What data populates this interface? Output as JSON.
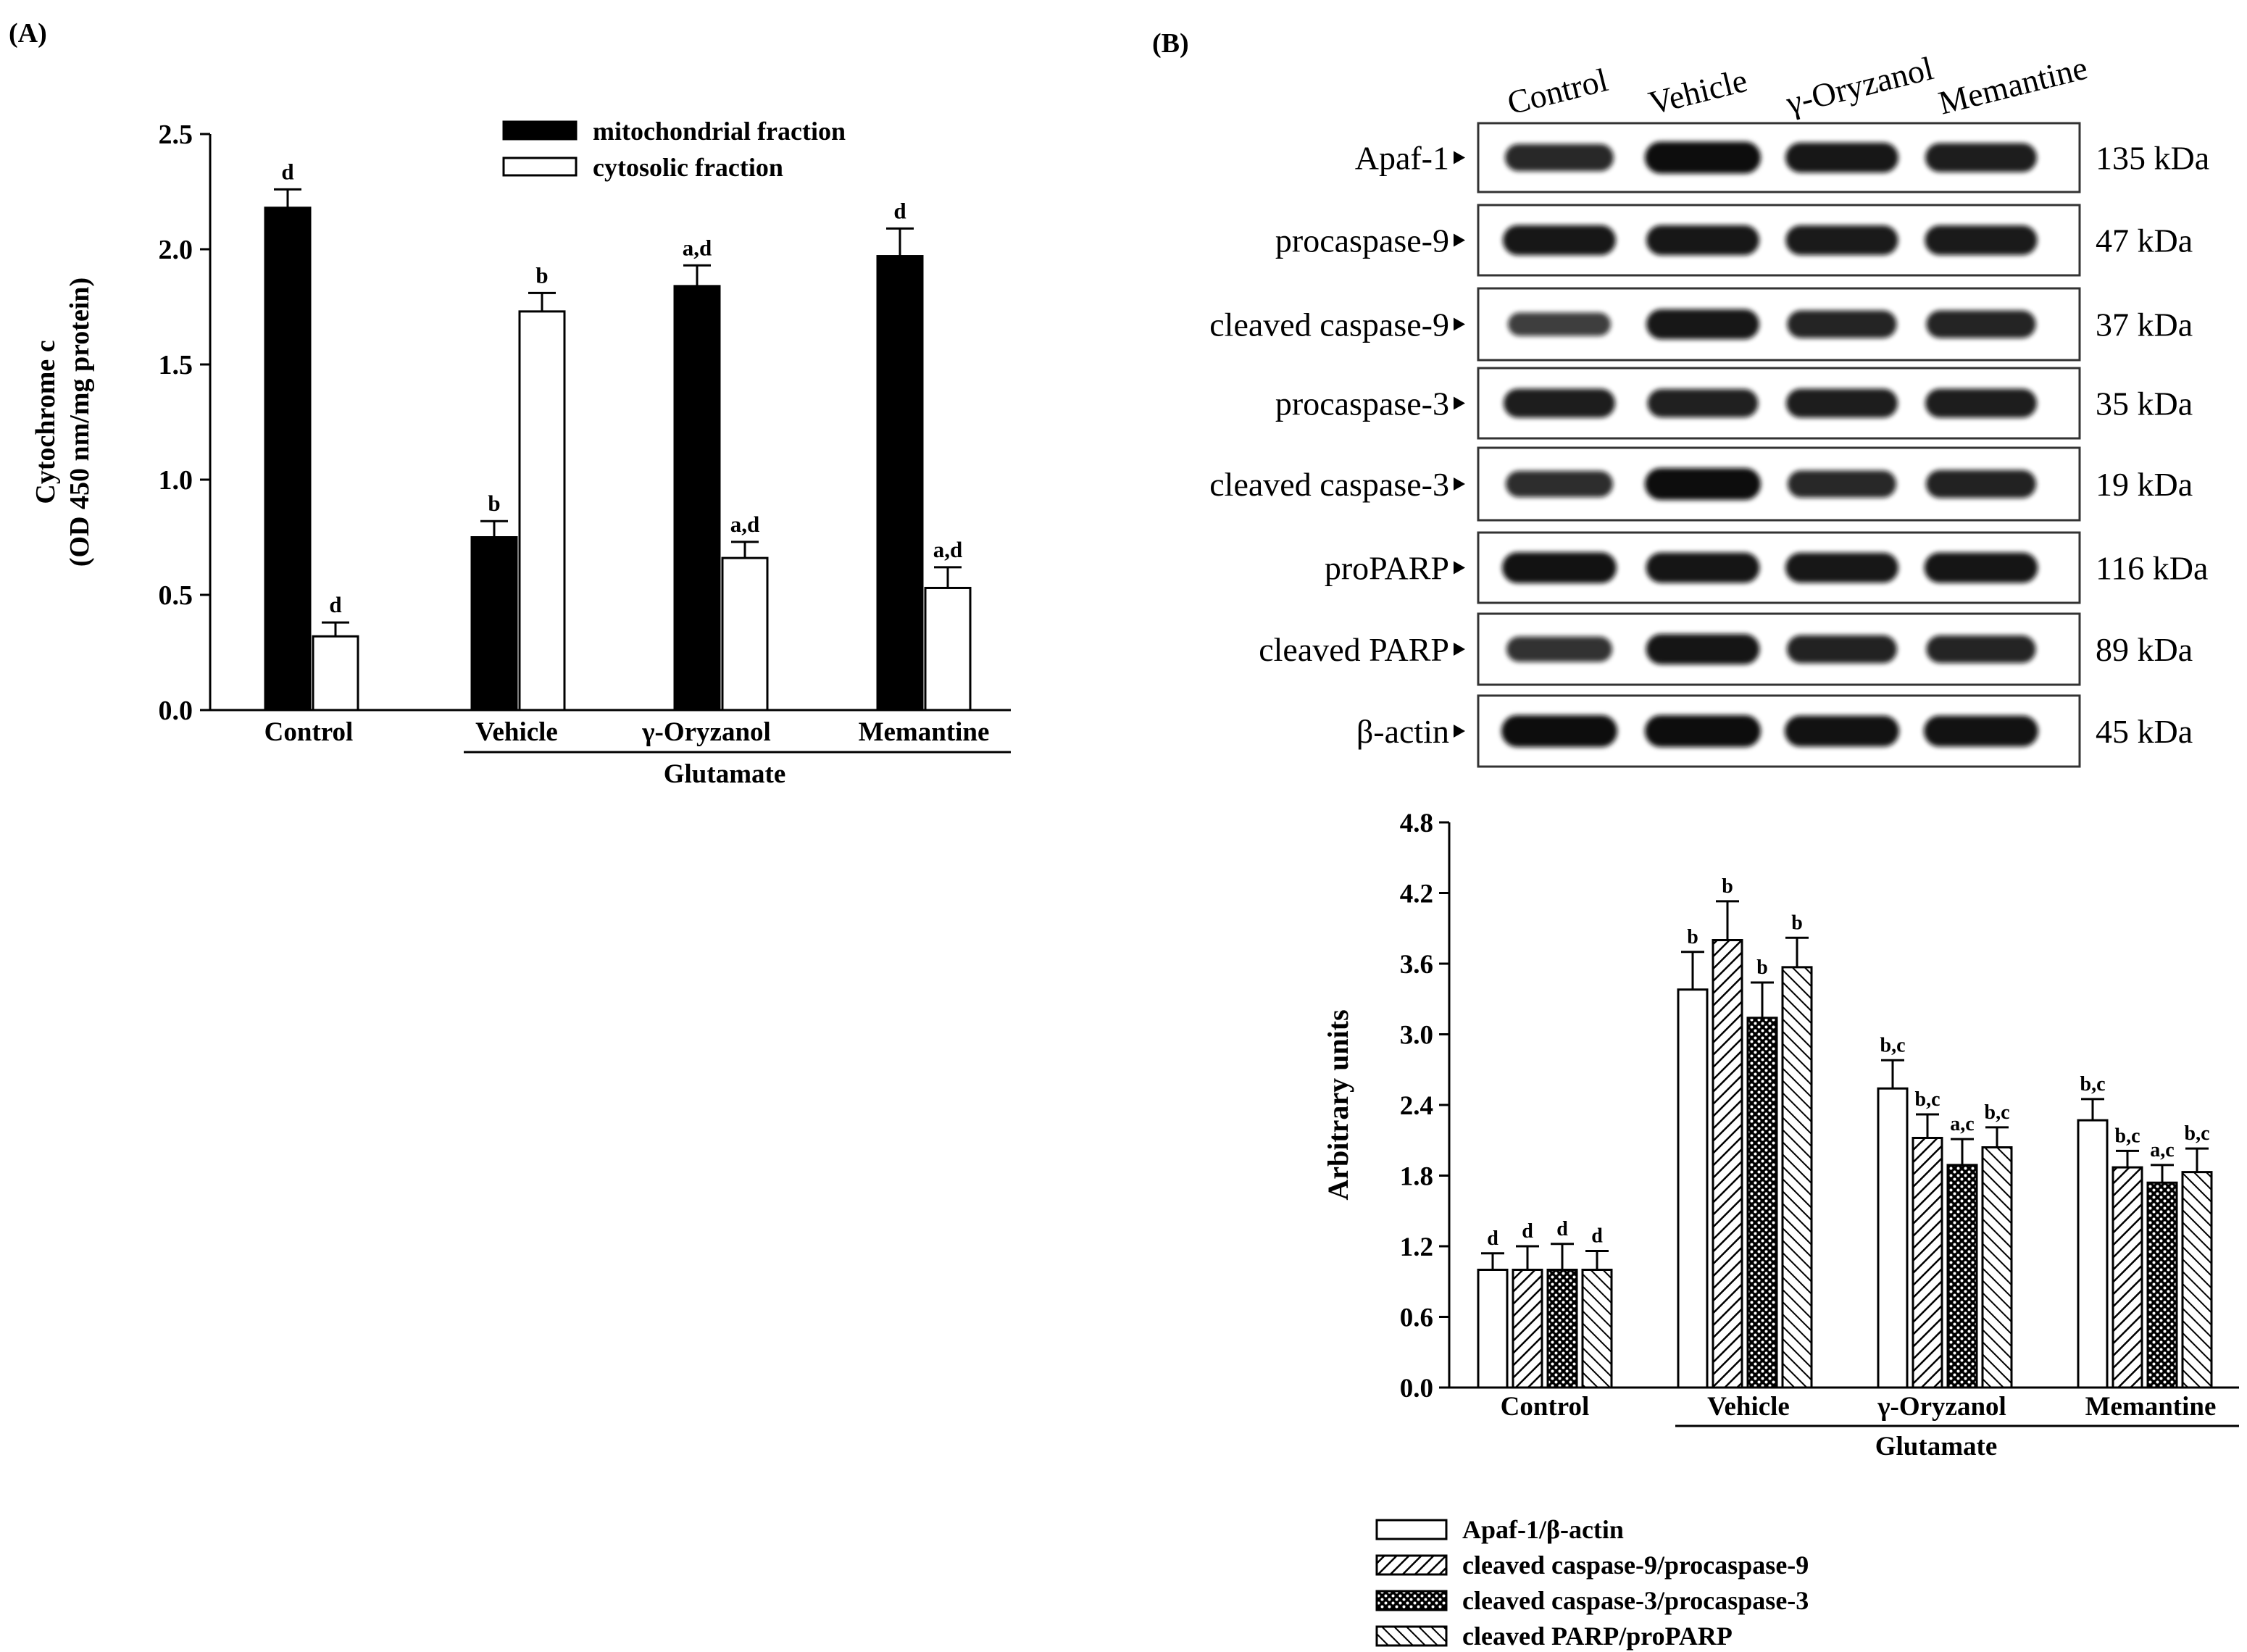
{
  "panel_a_label": "(A)",
  "panel_b_label": "(B)",
  "chart_data": [
    {
      "id": "panel-a",
      "type": "bar",
      "ylabel": "Cytochrome c",
      "ylabel2": "(OD 450 nm/mg protein)",
      "ylim": [
        0,
        2.5
      ],
      "yticks": [
        "0.0",
        "0.5",
        "1.0",
        "1.5",
        "2.0",
        "2.5"
      ],
      "categories": [
        "Control",
        "Vehicle",
        "γ-Oryzanol",
        "Memantine"
      ],
      "group_label": "Glutamate",
      "legend_position": "top-right",
      "series": [
        {
          "name": "mitochondrial fraction",
          "fill": "solid",
          "values": [
            2.18,
            0.75,
            1.84,
            1.97
          ],
          "errors": [
            0.08,
            0.07,
            0.09,
            0.12
          ],
          "labels": [
            "d",
            "b",
            "a,d",
            "d"
          ]
        },
        {
          "name": "cytosolic fraction",
          "fill": "white",
          "values": [
            0.32,
            1.73,
            0.66,
            0.53
          ],
          "errors": [
            0.06,
            0.08,
            0.07,
            0.09
          ],
          "labels": [
            "d",
            "b",
            "a,d",
            "a,d"
          ]
        }
      ]
    },
    {
      "id": "panel-b",
      "type": "bar",
      "ylabel": "Arbitrary units",
      "ylim": [
        0,
        4.8
      ],
      "yticks": [
        "0.0",
        "0.6",
        "1.2",
        "1.8",
        "2.4",
        "3.0",
        "3.6",
        "4.2",
        "4.8"
      ],
      "categories": [
        "Control",
        "Vehicle",
        "γ-Oryzanol",
        "Memantine"
      ],
      "group_label": "Glutamate",
      "legend_position": "bottom",
      "series": [
        {
          "name": "Apaf-1/β-actin",
          "fill": "white",
          "values": [
            1.0,
            3.38,
            2.54,
            2.27
          ],
          "errors": [
            0.14,
            0.32,
            0.24,
            0.18
          ],
          "labels": [
            "d",
            "b",
            "b,c",
            "b,c"
          ]
        },
        {
          "name": "cleaved caspase-9/procaspase-9",
          "fill": "diag",
          "values": [
            1.0,
            3.8,
            2.12,
            1.87
          ],
          "errors": [
            0.2,
            0.33,
            0.2,
            0.14
          ],
          "labels": [
            "d",
            "b",
            "b,c",
            "b,c"
          ]
        },
        {
          "name": "cleaved caspase-3/procaspase-3",
          "fill": "dots",
          "values": [
            1.0,
            3.14,
            1.89,
            1.74
          ],
          "errors": [
            0.22,
            0.3,
            0.22,
            0.15
          ],
          "labels": [
            "d",
            "b",
            "a,c",
            "a,c"
          ]
        },
        {
          "name": "cleaved PARP/proPARP",
          "fill": "hatch",
          "values": [
            1.0,
            3.57,
            2.04,
            1.83
          ],
          "errors": [
            0.16,
            0.25,
            0.17,
            0.2
          ],
          "labels": [
            "d",
            "b",
            "b,c",
            "b,c"
          ]
        }
      ]
    }
  ],
  "blot": {
    "lanes": [
      "Control",
      "Vehicle",
      "γ-Oryzanol",
      "Memantine"
    ],
    "rows": [
      {
        "label": "Apaf-1",
        "kda": "135 kDa",
        "intensity": [
          0.75,
          1.0,
          0.9,
          0.85
        ]
      },
      {
        "label": "procaspase-9",
        "kda": "47 kDa",
        "intensity": [
          0.9,
          0.9,
          0.88,
          0.88
        ]
      },
      {
        "label": "cleaved caspase-9",
        "kda": "37 kDa",
        "intensity": [
          0.55,
          0.9,
          0.78,
          0.78
        ]
      },
      {
        "label": "procaspase-3",
        "kda": "35 kDa",
        "intensity": [
          0.85,
          0.82,
          0.85,
          0.85
        ]
      },
      {
        "label": "cleaved caspase-3",
        "kda": "19 kDa",
        "intensity": [
          0.7,
          1.0,
          0.75,
          0.8
        ]
      },
      {
        "label": "proPARP",
        "kda": "116 kDa",
        "intensity": [
          0.95,
          0.92,
          0.9,
          0.92
        ]
      },
      {
        "label": "cleaved PARP",
        "kda": "89 kDa",
        "intensity": [
          0.65,
          0.92,
          0.8,
          0.78
        ]
      },
      {
        "label": "β-actin",
        "kda": "45 kDa",
        "intensity": [
          1.0,
          1.0,
          0.95,
          0.95
        ]
      }
    ]
  }
}
